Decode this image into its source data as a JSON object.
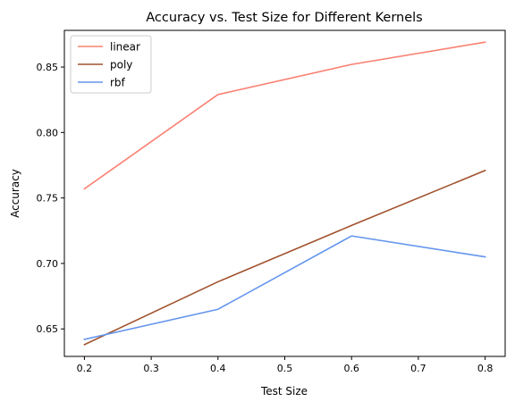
{
  "chart_data": {
    "type": "line",
    "title": "Accuracy vs. Test Size for Different Kernels",
    "xlabel": "Test Size",
    "ylabel": "Accuracy",
    "xlim": [
      0.17,
      0.83
    ],
    "ylim": [
      0.629,
      0.878
    ],
    "x_ticks": [
      0.2,
      0.3,
      0.4,
      0.5,
      0.6,
      0.7,
      0.8
    ],
    "y_ticks": [
      0.65,
      0.7,
      0.75,
      0.8,
      0.85
    ],
    "x_tick_labels": [
      "0.2",
      "0.3",
      "0.4",
      "0.5",
      "0.6",
      "0.7",
      "0.8"
    ],
    "y_tick_labels": [
      "0.65",
      "0.70",
      "0.75",
      "0.80",
      "0.85"
    ],
    "grid": false,
    "legend_position": "top-left",
    "x": [
      0.2,
      0.4,
      0.6,
      0.8
    ],
    "series": [
      {
        "name": "linear",
        "color": "#fa8072",
        "values": [
          0.757,
          0.829,
          0.852,
          0.869
        ]
      },
      {
        "name": "poly",
        "color": "#a0522d",
        "values": [
          0.638,
          0.686,
          0.729,
          0.771
        ]
      },
      {
        "name": "rbf",
        "color": "#6495ed",
        "values": [
          0.642,
          0.665,
          0.721,
          0.705
        ]
      }
    ]
  }
}
